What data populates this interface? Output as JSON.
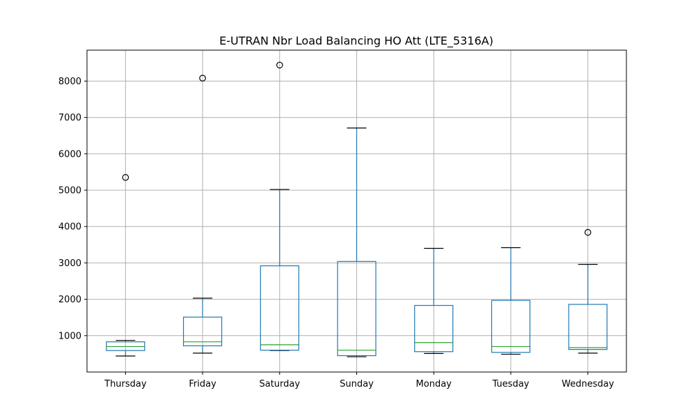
{
  "chart_data": {
    "type": "box",
    "title": "E-UTRAN Nbr Load Balancing HO Att (LTE_5316A)",
    "xlabel": "",
    "ylabel": "",
    "ylim": [
      0,
      8850
    ],
    "yticks": [
      1000,
      2000,
      3000,
      4000,
      5000,
      6000,
      7000,
      8000
    ],
    "grid": true,
    "categories": [
      "Thursday",
      "Friday",
      "Saturday",
      "Sunday",
      "Monday",
      "Tuesday",
      "Wednesday"
    ],
    "boxes": [
      {
        "category": "Thursday",
        "whisker_low": 440,
        "q1": 590,
        "median": 700,
        "q3": 830,
        "whisker_high": 870,
        "outliers": [
          5350
        ]
      },
      {
        "category": "Friday",
        "whisker_low": 520,
        "q1": 720,
        "median": 830,
        "q3": 1510,
        "whisker_high": 2030,
        "outliers": [
          8080
        ]
      },
      {
        "category": "Saturday",
        "whisker_low": 590,
        "q1": 600,
        "median": 750,
        "q3": 2920,
        "whisker_high": 5020,
        "outliers": [
          8440
        ]
      },
      {
        "category": "Sunday",
        "whisker_low": 420,
        "q1": 450,
        "median": 600,
        "q3": 3040,
        "whisker_high": 6710,
        "outliers": []
      },
      {
        "category": "Monday",
        "whisker_low": 510,
        "q1": 560,
        "median": 810,
        "q3": 1830,
        "whisker_high": 3400,
        "outliers": []
      },
      {
        "category": "Tuesday",
        "whisker_low": 490,
        "q1": 540,
        "median": 700,
        "q3": 1970,
        "whisker_high": 3420,
        "outliers": []
      },
      {
        "category": "Wednesday",
        "whisker_low": 520,
        "q1": 620,
        "median": 670,
        "q3": 1860,
        "whisker_high": 2960,
        "outliers": [
          3840
        ]
      }
    ]
  }
}
